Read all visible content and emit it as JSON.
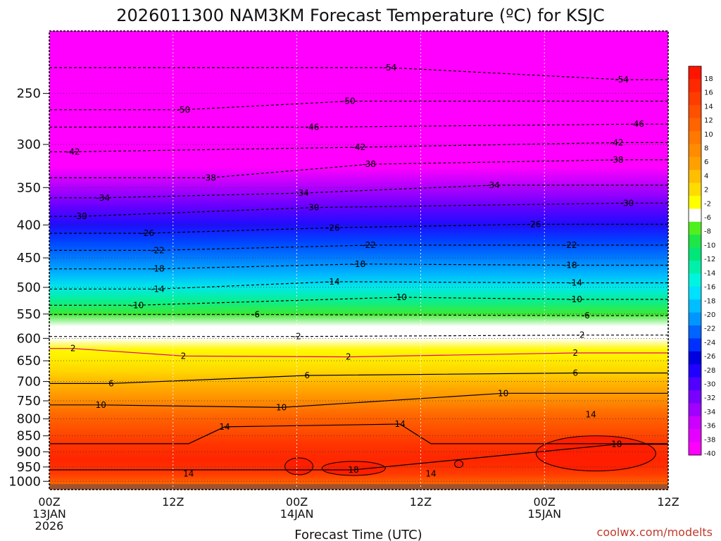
{
  "chart_data": {
    "type": "heatmap",
    "title": "2026011300 NAM3KM Forecast Temperature (ºC) for KSJC",
    "xlabel": "Forecast Time (UTC)",
    "ylabel": "",
    "credit": "coolwx.com/modelts",
    "y_scale": "log-pressure",
    "y_range_hPa": [
      1030,
      200
    ],
    "x_range_hours": [
      0,
      60
    ],
    "y_ticks": [
      250,
      300,
      350,
      400,
      450,
      500,
      550,
      600,
      650,
      700,
      750,
      800,
      850,
      900,
      950,
      1000
    ],
    "x_ticks": [
      {
        "hour": 0,
        "lines": [
          "00Z",
          "13JAN",
          "2026"
        ]
      },
      {
        "hour": 12,
        "lines": [
          "12Z"
        ]
      },
      {
        "hour": 24,
        "lines": [
          "00Z",
          "14JAN"
        ]
      },
      {
        "hour": 36,
        "lines": [
          "12Z"
        ]
      },
      {
        "hour": 48,
        "lines": [
          "00Z",
          "15JAN"
        ]
      },
      {
        "hour": 60,
        "lines": [
          "12Z"
        ]
      }
    ],
    "profile_levels_hPa": [
      200,
      225,
      250,
      275,
      300,
      325,
      350,
      375,
      400,
      425,
      450,
      475,
      500,
      525,
      550,
      575,
      600,
      625,
      650,
      675,
      700,
      725,
      750,
      775,
      800,
      825,
      850,
      875,
      900,
      925,
      950,
      975,
      1000,
      1030
    ],
    "profile_temps_C": [
      -56,
      -54,
      -51,
      -48,
      -44,
      -40,
      -35,
      -31,
      -27,
      -23,
      -20,
      -17,
      -13,
      -9,
      -5,
      -1,
      1,
      2.5,
      3.5,
      5,
      7,
      8.5,
      10,
      12,
      13.5,
      14.5,
      15.5,
      16.5,
      17,
      17.5,
      17,
      16,
      14,
      12
    ],
    "contour_labels": [
      {
        "text": "-54",
        "hour": 33,
        "p": 228
      },
      {
        "text": "-54",
        "hour": 55.5,
        "p": 238
      },
      {
        "text": "-50",
        "hour": 13,
        "p": 265
      },
      {
        "text": "-50",
        "hour": 29,
        "p": 257
      },
      {
        "text": "-46",
        "hour": 25.5,
        "p": 282
      },
      {
        "text": "-46",
        "hour": 57,
        "p": 279
      },
      {
        "text": "-42",
        "hour": 2.3,
        "p": 308
      },
      {
        "text": "-42",
        "hour": 30,
        "p": 303
      },
      {
        "text": "-42",
        "hour": 55,
        "p": 298
      },
      {
        "text": "-38",
        "hour": 15.5,
        "p": 338
      },
      {
        "text": "-38",
        "hour": 31,
        "p": 322
      },
      {
        "text": "-38",
        "hour": 55,
        "p": 317
      },
      {
        "text": "-34",
        "hour": 5.2,
        "p": 363
      },
      {
        "text": "-34",
        "hour": 24.5,
        "p": 357
      },
      {
        "text": "-34",
        "hour": 43,
        "p": 347
      },
      {
        "text": "-30",
        "hour": 3,
        "p": 388
      },
      {
        "text": "-30",
        "hour": 25.5,
        "p": 376
      },
      {
        "text": "-30",
        "hour": 56,
        "p": 370
      },
      {
        "text": "-26",
        "hour": 9.5,
        "p": 412
      },
      {
        "text": "-26",
        "hour": 27.5,
        "p": 404
      },
      {
        "text": "-26",
        "hour": 47,
        "p": 399
      },
      {
        "text": "-22",
        "hour": 10.5,
        "p": 438
      },
      {
        "text": "-22",
        "hour": 31,
        "p": 430
      },
      {
        "text": "-22",
        "hour": 50.5,
        "p": 430
      },
      {
        "text": "-18",
        "hour": 10.5,
        "p": 468
      },
      {
        "text": "-18",
        "hour": 30,
        "p": 460
      },
      {
        "text": "-18",
        "hour": 50.5,
        "p": 462
      },
      {
        "text": "-14",
        "hour": 10.5,
        "p": 503
      },
      {
        "text": "-14",
        "hour": 27.5,
        "p": 490
      },
      {
        "text": "-14",
        "hour": 51,
        "p": 492
      },
      {
        "text": "-10",
        "hour": 8.5,
        "p": 533
      },
      {
        "text": "-10",
        "hour": 34,
        "p": 518
      },
      {
        "text": "-10",
        "hour": 51,
        "p": 522
      },
      {
        "text": "-6",
        "hour": 20,
        "p": 551
      },
      {
        "text": "-6",
        "hour": 52,
        "p": 553
      },
      {
        "text": "-2",
        "hour": 24,
        "p": 596
      },
      {
        "text": "-2",
        "hour": 51.5,
        "p": 593
      },
      {
        "text": "2",
        "hour": 2.3,
        "p": 622
      },
      {
        "text": "2",
        "hour": 13,
        "p": 639
      },
      {
        "text": "2",
        "hour": 29,
        "p": 641
      },
      {
        "text": "2",
        "hour": 51,
        "p": 632
      },
      {
        "text": "6",
        "hour": 6,
        "p": 705
      },
      {
        "text": "6",
        "hour": 25,
        "p": 685
      },
      {
        "text": "6",
        "hour": 51,
        "p": 679
      },
      {
        "text": "10",
        "hour": 5,
        "p": 761
      },
      {
        "text": "10",
        "hour": 22.5,
        "p": 768
      },
      {
        "text": "10",
        "hour": 44,
        "p": 730
      },
      {
        "text": "14",
        "hour": 17,
        "p": 823
      },
      {
        "text": "14",
        "hour": 34,
        "p": 815
      },
      {
        "text": "14",
        "hour": 52.5,
        "p": 788
      },
      {
        "text": "14",
        "hour": 13.5,
        "p": 973
      },
      {
        "text": "14",
        "hour": 37,
        "p": 973
      },
      {
        "text": "18",
        "hour": 29.5,
        "p": 960
      },
      {
        "text": "18",
        "hour": 55,
        "p": 876
      }
    ],
    "colorbar": {
      "colors": [
        "#ff00ff",
        "#e600ff",
        "#cc00ff",
        "#a000ff",
        "#7800ff",
        "#5000ff",
        "#2000ff",
        "#0000e0",
        "#0030ff",
        "#0064ff",
        "#0096ff",
        "#00beff",
        "#00e0ff",
        "#00f5e0",
        "#00f0aa",
        "#00e678",
        "#1ee646",
        "#50f01e",
        "#ffffff",
        "#ffff00",
        "#ffdc00",
        "#ffbe00",
        "#ffa000",
        "#ff8c00",
        "#ff7800",
        "#ff6400",
        "#ff5000",
        "#ff3c00",
        "#ff2800",
        "#ff1400"
      ],
      "labels": [
        "-40",
        "-38",
        "-36",
        "-34",
        "-32",
        "-30",
        "-28",
        "-26",
        "-24",
        "-22",
        "-20",
        "-18",
        "-16",
        "-14",
        "-12",
        "-10",
        "-8",
        "-6",
        "-2",
        "2",
        "4",
        "6",
        "8",
        "10",
        "12",
        "14",
        "16",
        "18"
      ]
    },
    "ground_color": "#a0522d",
    "freezing_line_color": "#e6007e"
  }
}
